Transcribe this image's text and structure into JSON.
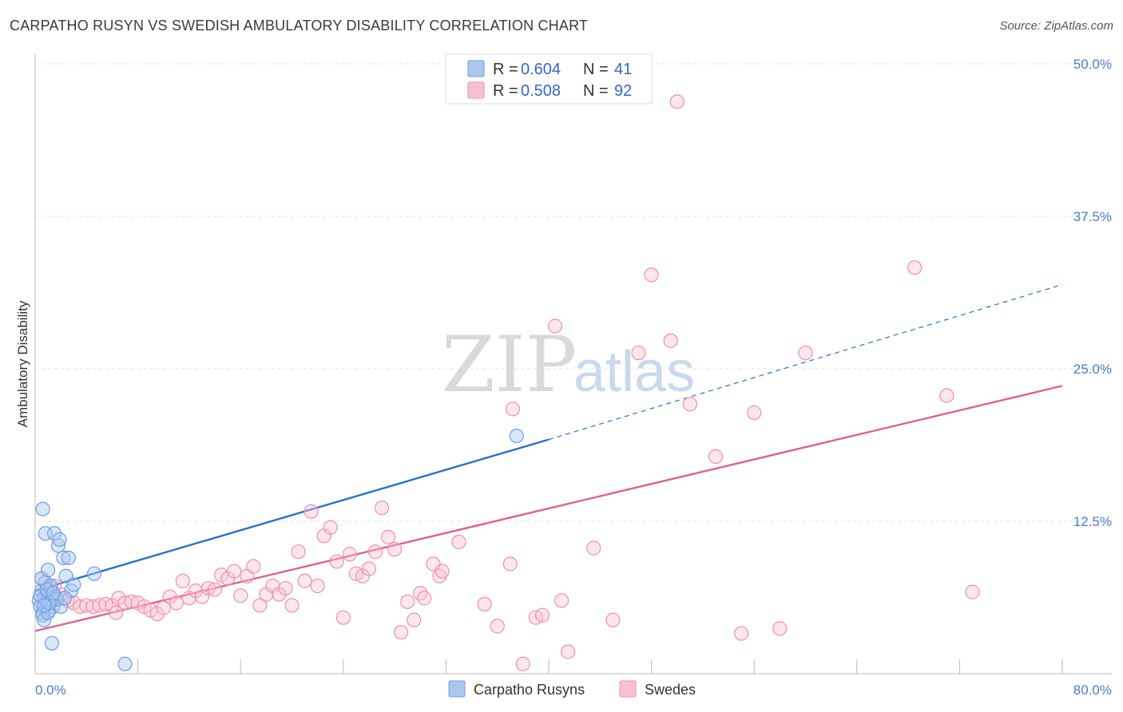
{
  "header": {
    "title": "CARPATHO RUSYN VS SWEDISH AMBULATORY DISABILITY CORRELATION CHART",
    "source": "Source: ZipAtlas.com"
  },
  "watermark": {
    "zip": "ZIP",
    "atlas": "atlas"
  },
  "legend": {
    "r_label": "R =",
    "n_label": "N =",
    "entries": [
      {
        "r": "0.604",
        "n": "41",
        "color": "#a8c8f0",
        "stroke": "#6f9ee0"
      },
      {
        "r": "0.508",
        "n": "92",
        "color": "#f9c0d0",
        "stroke": "#ef8fae"
      }
    ]
  },
  "bottom_legend": [
    {
      "label": "Carpatho Rusyns",
      "color": "#a8c8f0",
      "stroke": "#6f9ee0"
    },
    {
      "label": "Swedes",
      "color": "#f9c0d0",
      "stroke": "#ef8fae"
    }
  ],
  "chart_data": {
    "type": "scatter",
    "title": "CARPATHO RUSYN VS SWEDISH AMBULATORY DISABILITY CORRELATION CHART",
    "xlabel": "",
    "ylabel": "Ambulatory Disability",
    "xlim": [
      0,
      80
    ],
    "ylim": [
      0,
      50
    ],
    "x_tick_labels": [
      "0.0%",
      "80.0%"
    ],
    "y_ticks": [
      12.5,
      25.0,
      37.5,
      50.0
    ],
    "y_tick_labels": [
      "12.5%",
      "25.0%",
      "37.5%",
      "50.0%"
    ],
    "grid": true,
    "legend_position": "top-center",
    "series": [
      {
        "name": "Carpatho Rusyns",
        "color": "#6fa0e6",
        "trend": {
          "x": [
            0,
            40
          ],
          "y": [
            6.8,
            19.2
          ],
          "dashed_to": [
            80,
            31.9
          ],
          "color": "#2a6fcc"
        },
        "points": [
          [
            0.3,
            6.0
          ],
          [
            0.4,
            5.5
          ],
          [
            0.5,
            6.8
          ],
          [
            0.6,
            5.0
          ],
          [
            0.7,
            6.2
          ],
          [
            0.8,
            7.5
          ],
          [
            0.9,
            5.8
          ],
          [
            1.0,
            6.5
          ],
          [
            1.1,
            5.2
          ],
          [
            1.2,
            7.0
          ],
          [
            1.3,
            6.0
          ],
          [
            1.4,
            5.5
          ],
          [
            0.5,
            7.8
          ],
          [
            0.6,
            4.8
          ],
          [
            0.7,
            4.4
          ],
          [
            0.8,
            11.5
          ],
          [
            1.0,
            8.5
          ],
          [
            1.2,
            7.2
          ],
          [
            1.5,
            11.5
          ],
          [
            1.6,
            6.3
          ],
          [
            1.8,
            10.5
          ],
          [
            1.9,
            11.0
          ],
          [
            2.0,
            5.5
          ],
          [
            2.2,
            9.5
          ],
          [
            2.4,
            8.0
          ],
          [
            2.6,
            9.5
          ],
          [
            2.8,
            6.8
          ],
          [
            3.0,
            7.3
          ],
          [
            0.6,
            13.5
          ],
          [
            1.0,
            5.0
          ],
          [
            1.3,
            2.5
          ],
          [
            0.4,
            6.4
          ],
          [
            0.9,
            6.9
          ],
          [
            1.7,
            6.1
          ],
          [
            1.1,
            5.8
          ],
          [
            2.3,
            6.2
          ],
          [
            4.6,
            8.2
          ],
          [
            7.0,
            0.8
          ],
          [
            37.5,
            19.5
          ],
          [
            0.7,
            5.6
          ],
          [
            1.4,
            6.6
          ]
        ]
      },
      {
        "name": "Swedes",
        "color": "#f5a3bd",
        "trend": {
          "x": [
            0,
            80
          ],
          "y": [
            3.5,
            23.6
          ],
          "color": "#e0608c"
        },
        "points": [
          [
            0.5,
            7.8
          ],
          [
            0.8,
            6.5
          ],
          [
            1.0,
            6.0
          ],
          [
            1.5,
            7.2
          ],
          [
            2.0,
            6.5
          ],
          [
            2.5,
            6.0
          ],
          [
            3.0,
            5.8
          ],
          [
            3.5,
            5.5
          ],
          [
            4.0,
            5.6
          ],
          [
            4.5,
            5.5
          ],
          [
            5.0,
            5.6
          ],
          [
            5.5,
            5.7
          ],
          [
            6.0,
            5.6
          ],
          [
            6.5,
            6.2
          ],
          [
            6.3,
            5.0
          ],
          [
            7.0,
            5.8
          ],
          [
            7.5,
            5.9
          ],
          [
            8.0,
            5.8
          ],
          [
            8.5,
            5.5
          ],
          [
            9.0,
            5.2
          ],
          [
            9.5,
            4.9
          ],
          [
            10.0,
            5.4
          ],
          [
            10.5,
            6.3
          ],
          [
            11.0,
            5.8
          ],
          [
            11.5,
            7.6
          ],
          [
            12.0,
            6.2
          ],
          [
            12.5,
            6.8
          ],
          [
            13.0,
            6.3
          ],
          [
            13.5,
            7.0
          ],
          [
            14.0,
            6.9
          ],
          [
            14.5,
            8.1
          ],
          [
            15.0,
            7.8
          ],
          [
            15.5,
            8.4
          ],
          [
            16.0,
            6.4
          ],
          [
            16.5,
            8.0
          ],
          [
            17.0,
            8.8
          ],
          [
            17.5,
            5.6
          ],
          [
            18.0,
            6.5
          ],
          [
            18.5,
            7.2
          ],
          [
            19.0,
            6.5
          ],
          [
            19.5,
            7.0
          ],
          [
            20.0,
            5.6
          ],
          [
            20.5,
            10.0
          ],
          [
            21.0,
            7.6
          ],
          [
            21.5,
            13.3
          ],
          [
            22.0,
            7.2
          ],
          [
            22.5,
            11.3
          ],
          [
            23.0,
            12.0
          ],
          [
            23.5,
            9.2
          ],
          [
            24.0,
            4.6
          ],
          [
            24.5,
            9.8
          ],
          [
            25.0,
            8.2
          ],
          [
            25.5,
            8.0
          ],
          [
            26.0,
            8.6
          ],
          [
            26.5,
            10.0
          ],
          [
            27.0,
            13.6
          ],
          [
            27.5,
            11.2
          ],
          [
            28.0,
            10.2
          ],
          [
            28.5,
            3.4
          ],
          [
            29.0,
            5.9
          ],
          [
            29.5,
            4.4
          ],
          [
            30.0,
            6.6
          ],
          [
            30.3,
            6.2
          ],
          [
            31.0,
            9.0
          ],
          [
            31.5,
            8.0
          ],
          [
            31.7,
            8.4
          ],
          [
            33.0,
            10.8
          ],
          [
            35.0,
            5.7
          ],
          [
            36.0,
            3.9
          ],
          [
            37.0,
            9.0
          ],
          [
            37.2,
            21.7
          ],
          [
            38.0,
            0.8
          ],
          [
            39.0,
            4.6
          ],
          [
            39.5,
            4.8
          ],
          [
            40.5,
            28.5
          ],
          [
            41.0,
            6.0
          ],
          [
            41.5,
            1.8
          ],
          [
            43.5,
            10.3
          ],
          [
            45.0,
            4.4
          ],
          [
            47.0,
            26.3
          ],
          [
            48.0,
            32.7
          ],
          [
            49.5,
            27.3
          ],
          [
            50.0,
            46.9
          ],
          [
            51.0,
            22.1
          ],
          [
            53.0,
            17.8
          ],
          [
            55.0,
            3.3
          ],
          [
            56.0,
            21.4
          ],
          [
            58.0,
            3.7
          ],
          [
            60.0,
            26.3
          ],
          [
            68.5,
            33.3
          ],
          [
            71.0,
            22.8
          ],
          [
            73.0,
            6.7
          ]
        ]
      }
    ]
  }
}
